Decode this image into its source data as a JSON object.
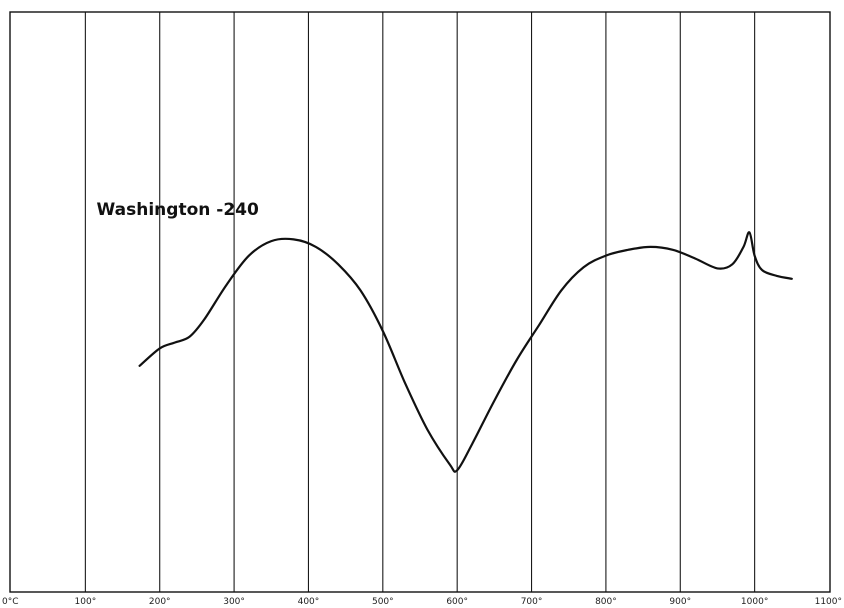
{
  "chart_data": {
    "type": "line",
    "title": "",
    "xlabel": "",
    "ylabel": "",
    "xlim": [
      0,
      1100
    ],
    "ylim": [
      0,
      100
    ],
    "grid": true,
    "x_ticks": [
      {
        "value": 0,
        "label": "0°C"
      },
      {
        "value": 100,
        "label": "100°"
      },
      {
        "value": 200,
        "label": "200°"
      },
      {
        "value": 300,
        "label": "300°"
      },
      {
        "value": 400,
        "label": "400°"
      },
      {
        "value": 500,
        "label": "500°"
      },
      {
        "value": 600,
        "label": "600°"
      },
      {
        "value": 700,
        "label": "700°"
      },
      {
        "value": 800,
        "label": "800°"
      },
      {
        "value": 900,
        "label": "900°"
      },
      {
        "value": 1000,
        "label": "1000°"
      },
      {
        "value": 1100,
        "label": "1100°"
      }
    ],
    "annotations": [
      {
        "text": "Washington -240",
        "x": 115,
        "y": 65
      }
    ],
    "series": [
      {
        "name": "",
        "color": "#111111",
        "x": [
          173,
          200,
          220,
          240,
          260,
          290,
          320,
          350,
          380,
          410,
          440,
          470,
          500,
          530,
          560,
          590,
          600,
          620,
          650,
          680,
          710,
          740,
          770,
          800,
          830,
          860,
          890,
          920,
          950,
          970,
          985,
          993,
          1000,
          1010,
          1030,
          1050
        ],
        "y": [
          39,
          42,
          43,
          44,
          47,
          53,
          58,
          60.5,
          60.8,
          59.5,
          56.5,
          52,
          45,
          36,
          28,
          22,
          21,
          25.5,
          33,
          40,
          46,
          52,
          56,
          58,
          59,
          59.5,
          59,
          57.5,
          55.8,
          56.5,
          59.5,
          62,
          58,
          55.5,
          54.5,
          54
        ]
      }
    ]
  }
}
